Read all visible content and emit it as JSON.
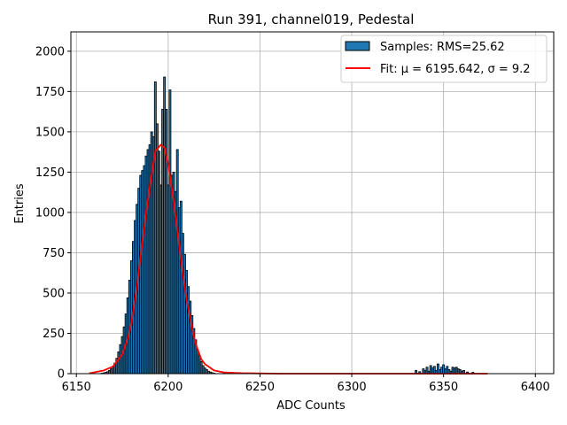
{
  "chart_data": {
    "type": "bar",
    "title": "Run 391, channel019, Pedestal",
    "xlabel": "ADC Counts",
    "ylabel": "Entries",
    "xlim": [
      6147,
      6410
    ],
    "ylim": [
      0,
      2120
    ],
    "xticks": [
      6150,
      6200,
      6250,
      6300,
      6350,
      6400
    ],
    "yticks": [
      0,
      250,
      500,
      750,
      1000,
      1250,
      1500,
      1750,
      2000
    ],
    "grid": true,
    "legend_position": "top-right",
    "bar_color": "#1f77b4",
    "bar_edge_color": "#000000",
    "fit_color": "#ff0000",
    "series": [
      {
        "name": "Samples: RMS=25.62",
        "type": "histogram",
        "bin_width": 1,
        "x": [
          6164,
          6165,
          6166,
          6167,
          6168,
          6169,
          6170,
          6171,
          6172,
          6173,
          6174,
          6175,
          6176,
          6177,
          6178,
          6179,
          6180,
          6181,
          6182,
          6183,
          6184,
          6185,
          6186,
          6187,
          6188,
          6189,
          6190,
          6191,
          6192,
          6193,
          6194,
          6195,
          6196,
          6197,
          6198,
          6199,
          6200,
          6201,
          6202,
          6203,
          6204,
          6205,
          6206,
          6207,
          6208,
          6209,
          6210,
          6211,
          6212,
          6213,
          6214,
          6215,
          6216,
          6217,
          6218,
          6219,
          6220,
          6221,
          6222,
          6223,
          6224,
          6225,
          6335,
          6337,
          6339,
          6340,
          6341,
          6342,
          6343,
          6344,
          6345,
          6346,
          6347,
          6348,
          6349,
          6350,
          6351,
          6352,
          6353,
          6354,
          6355,
          6356,
          6357,
          6358,
          6359,
          6360,
          6361,
          6363,
          6366
        ],
        "values": [
          3,
          5,
          8,
          12,
          20,
          30,
          45,
          65,
          95,
          135,
          180,
          230,
          290,
          370,
          470,
          580,
          700,
          820,
          950,
          1050,
          1150,
          1230,
          1260,
          1290,
          1350,
          1390,
          1420,
          1500,
          1470,
          1810,
          1550,
          1380,
          1170,
          1640,
          1840,
          1640,
          1170,
          1760,
          1230,
          1250,
          1130,
          1390,
          1030,
          1070,
          870,
          740,
          640,
          540,
          450,
          360,
          280,
          210,
          150,
          110,
          75,
          50,
          35,
          25,
          15,
          10,
          6,
          3,
          20,
          12,
          30,
          20,
          40,
          15,
          50,
          35,
          45,
          20,
          60,
          25,
          40,
          55,
          30,
          45,
          25,
          15,
          40,
          35,
          40,
          30,
          25,
          15,
          20,
          10,
          8
        ]
      },
      {
        "name": "Fit: μ = 6195.642, σ = 9.2",
        "type": "line",
        "x": [
          6157,
          6165,
          6170,
          6175,
          6178,
          6180,
          6183,
          6185,
          6188,
          6190,
          6193,
          6196,
          6198,
          6200,
          6203,
          6205,
          6208,
          6210,
          6213,
          6215,
          6218,
          6220,
          6225,
          6230,
          6240,
          6260,
          6300,
          6340,
          6360,
          6374
        ],
        "values": [
          2,
          20,
          45,
          120,
          220,
          320,
          540,
          730,
          1000,
          1160,
          1380,
          1420,
          1400,
          1300,
          1070,
          880,
          620,
          460,
          280,
          185,
          90,
          60,
          20,
          8,
          3,
          0,
          0,
          0,
          0,
          0
        ]
      }
    ]
  }
}
